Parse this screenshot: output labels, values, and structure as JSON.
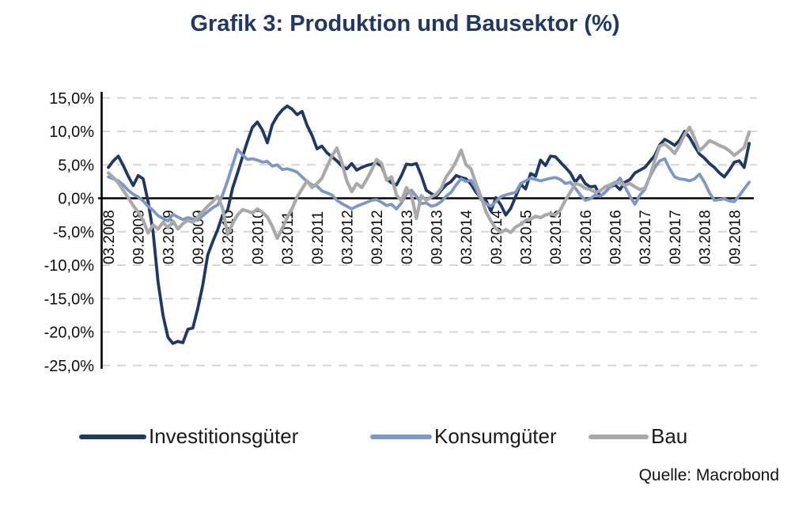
{
  "title": "Grafik 3: Produktion und Bausektor (%)",
  "source": "Quelle: Macrobond",
  "colors": {
    "title": "#1f3864",
    "gridline": "#d6d6d6",
    "axis": "#000000",
    "tick_text": "#0d0d0d"
  },
  "legend": [
    {
      "label": "Investitionsgüter",
      "color": "#1F3864"
    },
    {
      "label": "Konsumgüter",
      "color": "#7D97C6"
    },
    {
      "label": "Bau",
      "color": "#A9A9A9"
    }
  ],
  "chart_data": {
    "type": "line",
    "title": "Grafik 3: Produktion und Bausektor (%)",
    "unit": "%",
    "x_interval": "monthly",
    "x_start": "03.2008",
    "x_end": "12.2018",
    "grid": "dashed horizontal gridlines every 5%",
    "legend_position": "bottom",
    "ylim": [
      -25,
      15
    ],
    "y_ticks": [
      {
        "label": "15,0%",
        "value": 15
      },
      {
        "label": "10,0%",
        "value": 10
      },
      {
        "label": "5,0%",
        "value": 5
      },
      {
        "label": "0,0%",
        "value": 0
      },
      {
        "label": "-5,0%",
        "value": -5
      },
      {
        "label": "-10,0%",
        "value": -10
      },
      {
        "label": "-15,0%",
        "value": -15
      },
      {
        "label": "-20,0%",
        "value": -20
      },
      {
        "label": "-25,0%",
        "value": -25
      }
    ],
    "x_tick_labels": [
      "03.2008",
      "09.2008",
      "03.2009",
      "09.2009",
      "03.2010",
      "09.2010",
      "03.2011",
      "09.2011",
      "03.2012",
      "09.2012",
      "03.2013",
      "09.2013",
      "03.2014",
      "09.2014",
      "03.2015",
      "09.2015",
      "03.2016",
      "09.2016",
      "03.2017",
      "09.2017",
      "03.2018",
      "09.2018"
    ],
    "x_tick_every_months": 6,
    "series": [
      {
        "name": "Investitionsgüter",
        "id": "investitionsgueter",
        "color": "#1F3864",
        "width": 3.8,
        "values": [
          4.6,
          5.6,
          6.3,
          4.9,
          3.3,
          1.9,
          3.4,
          2.9,
          -0.5,
          -5.0,
          -12.5,
          -17.5,
          -20.8,
          -21.7,
          -21.4,
          -21.6,
          -19.6,
          -19.4,
          -16.5,
          -13.0,
          -8.5,
          -6.5,
          -4.7,
          -2.5,
          -1.8,
          1.5,
          3.8,
          6.2,
          8.5,
          10.6,
          11.4,
          10.2,
          8.3,
          11.0,
          12.3,
          13.2,
          13.8,
          13.3,
          12.5,
          13.0,
          10.9,
          9.4,
          7.4,
          7.8,
          6.8,
          6.2,
          5.6,
          4.8,
          4.4,
          5.2,
          4.2,
          4.6,
          4.9,
          5.1,
          5.3,
          4.8,
          2.9,
          2.3,
          2.0,
          3.4,
          5.1,
          5.0,
          5.2,
          3.4,
          1.2,
          0.7,
          0.3,
          1.2,
          2.0,
          2.5,
          3.4,
          3.1,
          2.9,
          2.1,
          0.9,
          0.1,
          -0.3,
          -1.9,
          0.1,
          -1.0,
          -2.5,
          -1.5,
          0.3,
          2.1,
          1.4,
          3.7,
          3.3,
          5.7,
          4.9,
          6.3,
          6.2,
          5.4,
          4.6,
          3.8,
          2.4,
          3.4,
          2.2,
          1.7,
          1.8,
          0.3,
          0.9,
          1.7,
          2.0,
          1.3,
          2.4,
          2.8,
          3.8,
          4.2,
          4.6,
          5.5,
          6.4,
          8.0,
          8.8,
          8.4,
          7.9,
          8.7,
          10.0,
          9.1,
          7.8,
          6.6,
          6.0,
          5.2,
          4.6,
          3.8,
          3.2,
          4.2,
          5.4,
          5.6,
          4.6,
          8.2
        ]
      },
      {
        "name": "Konsumgüter",
        "id": "konsumgueter",
        "color": "#7D97C6",
        "width": 3.8,
        "values": [
          3.2,
          2.9,
          2.6,
          2.0,
          1.2,
          0.6,
          0.2,
          -0.4,
          -1.2,
          -1.8,
          -2.6,
          -3.0,
          -3.4,
          -2.4,
          -2.8,
          -3.2,
          -2.9,
          -3.1,
          -3.3,
          -2.6,
          -2.0,
          -1.4,
          -1.0,
          0.5,
          2.6,
          5.0,
          7.3,
          6.5,
          5.8,
          5.9,
          5.7,
          5.4,
          5.5,
          4.8,
          5.0,
          4.3,
          4.4,
          4.2,
          3.9,
          3.2,
          2.5,
          2.0,
          1.8,
          1.1,
          0.8,
          0.5,
          -0.3,
          -0.8,
          -1.2,
          -1.6,
          -1.2,
          -0.9,
          -0.6,
          -0.3,
          -0.2,
          -0.6,
          -1.1,
          -0.9,
          -1.6,
          -0.7,
          0.6,
          1.2,
          0.3,
          -0.8,
          -0.7,
          -1.2,
          -1.0,
          -0.5,
          0.3,
          0.9,
          2.0,
          2.9,
          2.5,
          2.7,
          1.5,
          -0.2,
          -0.8,
          -1.2,
          -0.5,
          0.2,
          0.5,
          0.7,
          0.9,
          2.2,
          2.6,
          3.0,
          2.8,
          2.6,
          2.8,
          3.0,
          3.1,
          2.8,
          2.2,
          2.4,
          1.5,
          0.5,
          -0.3,
          -0.1,
          0.5,
          0.3,
          0.9,
          1.7,
          2.2,
          3.0,
          1.7,
          0.3,
          -0.9,
          0.5,
          1.3,
          3.2,
          4.6,
          5.6,
          5.9,
          4.4,
          3.2,
          2.9,
          2.8,
          2.6,
          2.9,
          3.6,
          2.4,
          0.8,
          -0.3,
          -0.2,
          -0.1,
          -0.4,
          -0.5,
          0.4,
          1.4,
          2.4
        ]
      },
      {
        "name": "Bau",
        "id": "bau",
        "color": "#A9A9A9",
        "width": 4.2,
        "values": [
          3.8,
          3.1,
          2.3,
          1.2,
          0.1,
          -1.1,
          -2.1,
          -3.3,
          -5.2,
          -4.0,
          -4.6,
          -3.6,
          -4.4,
          -3.4,
          -4.6,
          -3.8,
          -3.3,
          -3.6,
          -2.8,
          -2.0,
          -1.2,
          -0.5,
          0.3,
          -1.5,
          -5.4,
          -3.8,
          -2.5,
          -1.7,
          -1.9,
          -2.2,
          -1.6,
          -2.1,
          -2.8,
          -4.2,
          -6.0,
          -4.5,
          -2.9,
          -1.5,
          0.2,
          1.4,
          2.6,
          1.6,
          2.2,
          3.0,
          4.7,
          6.3,
          7.5,
          5.3,
          2.6,
          1.0,
          2.2,
          1.6,
          2.8,
          4.2,
          5.8,
          5.2,
          2.7,
          3.2,
          0.5,
          -0.4,
          1.6,
          0.5,
          -3.0,
          0.4,
          -0.3,
          0.2,
          0.6,
          1.5,
          3.2,
          4.2,
          5.5,
          7.2,
          5.0,
          4.4,
          2.2,
          0.3,
          -2.0,
          -3.4,
          -4.5,
          -5.1,
          -4.7,
          -5.1,
          -4.3,
          -3.9,
          -3.3,
          -3.1,
          -2.7,
          -2.9,
          -2.5,
          -2.3,
          -2.5,
          -1.7,
          -0.3,
          0.9,
          2.2,
          2.0,
          1.5,
          1.3,
          0.9,
          1.1,
          1.7,
          2.0,
          2.4,
          2.2,
          2.0,
          2.2,
          1.7,
          1.3,
          1.5,
          3.2,
          5.7,
          7.8,
          8.1,
          7.5,
          6.7,
          8.0,
          9.5,
          10.6,
          9.0,
          7.1,
          7.8,
          8.6,
          8.3,
          7.9,
          7.6,
          7.1,
          6.4,
          7.0,
          7.6,
          9.9
        ]
      }
    ]
  }
}
